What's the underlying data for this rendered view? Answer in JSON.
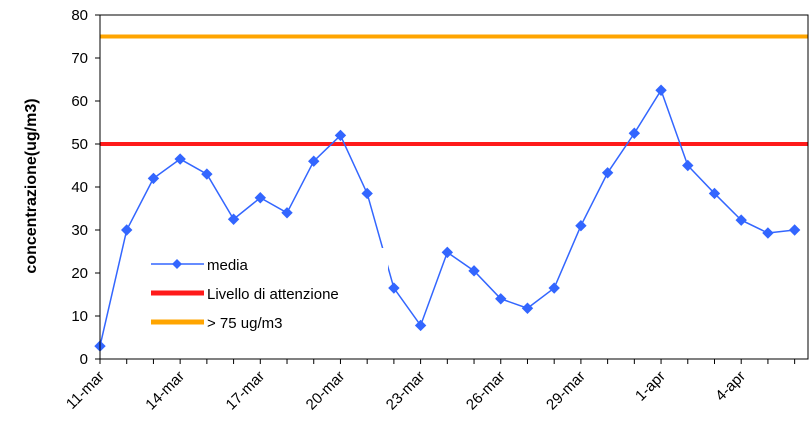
{
  "chart_data": {
    "type": "line",
    "title": "",
    "xlabel": "",
    "ylabel": "concentrazione(ug/m3)",
    "ylim": [
      0,
      80
    ],
    "yticks": [
      0,
      10,
      20,
      30,
      40,
      50,
      60,
      70,
      80
    ],
    "grid": false,
    "legend_position": "lower-left",
    "x": [
      "11-mar",
      "12-mar",
      "13-mar",
      "14-mar",
      "15-mar",
      "16-mar",
      "17-mar",
      "18-mar",
      "19-mar",
      "20-mar",
      "21-mar",
      "22-mar",
      "23-mar",
      "24-mar",
      "25-mar",
      "26-mar",
      "27-mar",
      "28-mar",
      "29-mar",
      "30-mar",
      "31-mar",
      "1-apr",
      "2-apr",
      "3-apr",
      "4-apr",
      "5-apr",
      "6-apr"
    ],
    "x_tick_labels": [
      "11-mar",
      "14-mar",
      "17-mar",
      "20-mar",
      "23-mar",
      "26-mar",
      "29-mar",
      "1-apr",
      "4-apr"
    ],
    "series": [
      {
        "name": "media",
        "color": "#3366ff",
        "marker": "diamond",
        "values": [
          3,
          30,
          42,
          46.5,
          43,
          32.5,
          37.5,
          34,
          46,
          52,
          38.5,
          16.5,
          7.8,
          24.8,
          20.5,
          14,
          11.8,
          16.5,
          31,
          43.3,
          52.5,
          62.5,
          45,
          38.5,
          32.3,
          29.3,
          30
        ]
      },
      {
        "name": "Livello di attenzione",
        "color": "#ff1a1a",
        "marker": "none",
        "values": [
          50,
          50,
          50,
          50,
          50,
          50,
          50,
          50,
          50,
          50,
          50,
          50,
          50,
          50,
          50,
          50,
          50,
          50,
          50,
          50,
          50,
          50,
          50,
          50,
          50,
          50,
          50
        ]
      },
      {
        "name": ">  75 ug/m3",
        "color": "#ffa500",
        "marker": "none",
        "values": [
          75,
          75,
          75,
          75,
          75,
          75,
          75,
          75,
          75,
          75,
          75,
          75,
          75,
          75,
          75,
          75,
          75,
          75,
          75,
          75,
          75,
          75,
          75,
          75,
          75,
          75,
          75
        ]
      }
    ]
  }
}
